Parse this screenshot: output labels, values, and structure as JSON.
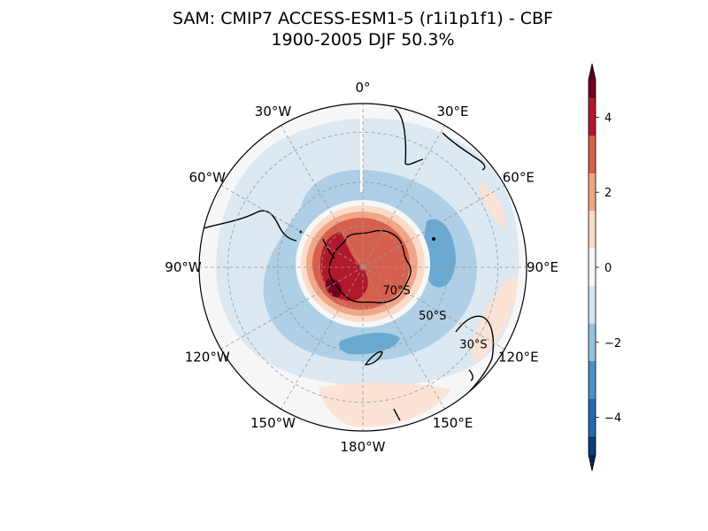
{
  "title_line1": "SAM: CMIP7 ACCESS-ESM1-5 (r1i1p1f1) - CBF",
  "title_line2": "1900-2005 DJF 50.3%",
  "chart_data": {
    "type": "heatmap",
    "projection": "south-polar-stereographic",
    "title": "SAM: CMIP7 ACCESS-ESM1-5 (r1i1p1f1) - CBF",
    "subtitle": "1900-2005 DJF 50.3%",
    "longitude_labels": [
      "0°",
      "30°E",
      "60°E",
      "90°E",
      "120°E",
      "150°E",
      "180°W",
      "150°W",
      "120°W",
      "90°W",
      "60°W",
      "30°W"
    ],
    "latitude_labels": [
      "70°S",
      "50°S",
      "30°S"
    ],
    "lat_circles": [
      -70,
      -50,
      -30
    ],
    "outer_lat": -20,
    "grid": true,
    "colorbar": {
      "levels": [
        -5,
        -4.5,
        -3.5,
        -2.5,
        -1.5,
        -0.5,
        0.5,
        1.5,
        2.5,
        3.5,
        4.5,
        5
      ],
      "colors": [
        "#0b3d7a",
        "#2369ad",
        "#4a94c4",
        "#92c4de",
        "#d3e5f0",
        "#f7f7f7",
        "#fbdbc8",
        "#f1a687",
        "#d6604d",
        "#b2182b",
        "#75001e"
      ],
      "ticks": [
        -4,
        -2,
        0,
        2,
        4
      ],
      "tick_labels": [
        "−4",
        "−2",
        "0",
        "2",
        "4"
      ],
      "extend": "both",
      "under_color": "#05264f",
      "over_color": "#5a0015"
    },
    "field_pattern": {
      "antarctic_core": "positive 2 to 5 over Antarctica",
      "midlatitude_ring": "negative -1 to -3 around 40-60°S",
      "subtropics": "weak positive 0 to 1 near 30°S"
    }
  }
}
